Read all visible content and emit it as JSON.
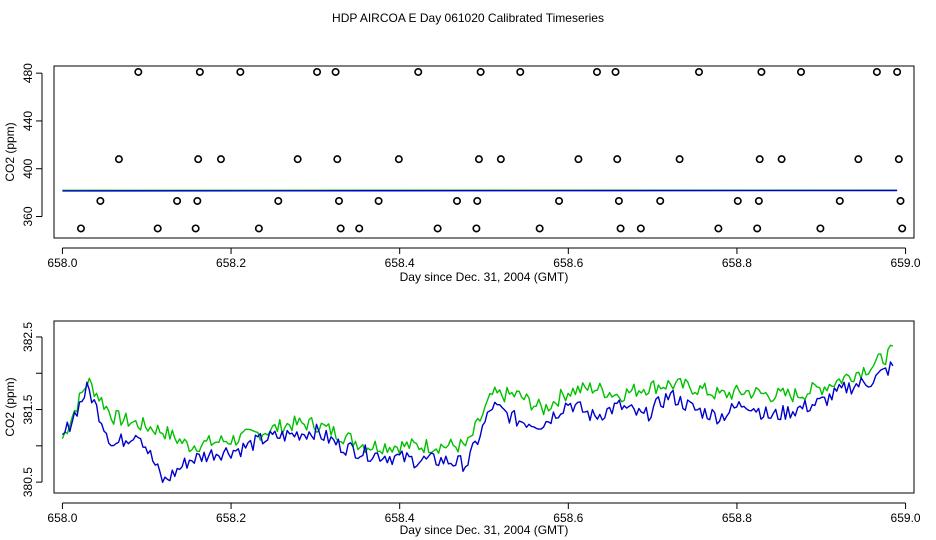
{
  "figure": {
    "title": "HDP AIRCOA E  Day 061020  Calibrated Timeseries"
  },
  "colors": {
    "green": "#00c000",
    "blue": "#0000cc",
    "axis": "#000000"
  },
  "chart_data": [
    {
      "type": "scatter",
      "xlabel": "Day since Dec. 31, 2004 (GMT)",
      "ylabel": "CO2 (ppm)",
      "xlim": [
        657.99,
        659.01
      ],
      "ylim": [
        342,
        486
      ],
      "xticks": [
        658.0,
        658.2,
        658.4,
        658.6,
        658.8,
        659.0
      ],
      "xtick_labels": [
        "658.0",
        "658.2",
        "658.4",
        "658.6",
        "658.8",
        "659.0"
      ],
      "yticks": [
        360,
        400,
        440,
        480
      ],
      "ytick_labels": [
        "360",
        "400",
        "440",
        "480"
      ],
      "markers": [
        {
          "x": 658.022,
          "y": 350
        },
        {
          "x": 658.045,
          "y": 373
        },
        {
          "x": 658.067,
          "y": 408
        },
        {
          "x": 658.09,
          "y": 481
        },
        {
          "x": 658.113,
          "y": 350
        },
        {
          "x": 658.136,
          "y": 373
        },
        {
          "x": 658.158,
          "y": 350
        },
        {
          "x": 658.16,
          "y": 373
        },
        {
          "x": 658.161,
          "y": 408
        },
        {
          "x": 658.163,
          "y": 481
        },
        {
          "x": 658.188,
          "y": 408
        },
        {
          "x": 658.211,
          "y": 481
        },
        {
          "x": 658.233,
          "y": 350
        },
        {
          "x": 658.256,
          "y": 373
        },
        {
          "x": 658.279,
          "y": 408
        },
        {
          "x": 658.302,
          "y": 481
        },
        {
          "x": 658.324,
          "y": 481
        },
        {
          "x": 658.326,
          "y": 408
        },
        {
          "x": 658.328,
          "y": 373
        },
        {
          "x": 658.33,
          "y": 350
        },
        {
          "x": 658.352,
          "y": 350
        },
        {
          "x": 658.375,
          "y": 373
        },
        {
          "x": 658.399,
          "y": 408
        },
        {
          "x": 658.422,
          "y": 481
        },
        {
          "x": 658.445,
          "y": 350
        },
        {
          "x": 658.468,
          "y": 373
        },
        {
          "x": 658.491,
          "y": 350
        },
        {
          "x": 658.492,
          "y": 373
        },
        {
          "x": 658.494,
          "y": 408
        },
        {
          "x": 658.496,
          "y": 481
        },
        {
          "x": 658.52,
          "y": 408
        },
        {
          "x": 658.543,
          "y": 481
        },
        {
          "x": 658.566,
          "y": 350
        },
        {
          "x": 658.589,
          "y": 373
        },
        {
          "x": 658.612,
          "y": 408
        },
        {
          "x": 658.634,
          "y": 481
        },
        {
          "x": 658.656,
          "y": 481
        },
        {
          "x": 658.658,
          "y": 408
        },
        {
          "x": 658.66,
          "y": 373
        },
        {
          "x": 658.662,
          "y": 350
        },
        {
          "x": 658.686,
          "y": 350
        },
        {
          "x": 658.709,
          "y": 373
        },
        {
          "x": 658.732,
          "y": 408
        },
        {
          "x": 658.755,
          "y": 481
        },
        {
          "x": 658.778,
          "y": 350
        },
        {
          "x": 658.801,
          "y": 373
        },
        {
          "x": 658.824,
          "y": 350
        },
        {
          "x": 658.826,
          "y": 373
        },
        {
          "x": 658.827,
          "y": 408
        },
        {
          "x": 658.829,
          "y": 481
        },
        {
          "x": 658.853,
          "y": 408
        },
        {
          "x": 658.876,
          "y": 481
        },
        {
          "x": 658.899,
          "y": 350
        },
        {
          "x": 658.922,
          "y": 373
        },
        {
          "x": 658.944,
          "y": 408
        },
        {
          "x": 658.966,
          "y": 481
        },
        {
          "x": 658.99,
          "y": 481
        },
        {
          "x": 658.992,
          "y": 408
        },
        {
          "x": 658.994,
          "y": 373
        },
        {
          "x": 658.996,
          "y": 350
        }
      ],
      "series": [
        {
          "color": "#00c000",
          "x": [
            658.0,
            658.99
          ],
          "values": [
            381.9,
            382.0
          ]
        },
        {
          "color": "#0000cc",
          "x": [
            658.0,
            658.99
          ],
          "values": [
            381.4,
            381.8
          ]
        }
      ]
    },
    {
      "type": "line",
      "xlabel": "Day since Dec. 31, 2004 (GMT)",
      "ylabel": "CO2 (ppm)",
      "xlim": [
        657.99,
        659.01
      ],
      "ylim": [
        380.35,
        382.72
      ],
      "xticks": [
        658.0,
        658.2,
        658.4,
        658.6,
        658.8,
        659.0
      ],
      "xtick_labels": [
        "658.0",
        "658.2",
        "658.4",
        "658.6",
        "658.8",
        "659.0"
      ],
      "yticks": [
        380.5,
        381.0,
        381.5,
        382.0,
        382.5
      ],
      "ytick_labels": [
        "380.5",
        "",
        "381.5",
        "",
        "382.5"
      ],
      "series": [
        {
          "color": "#00c000",
          "x": [
            658.0,
            658.03,
            658.06,
            658.09,
            658.12,
            658.15,
            658.18,
            658.21,
            658.24,
            658.27,
            658.3,
            658.33,
            658.36,
            658.39,
            658.42,
            658.45,
            658.48,
            658.51,
            658.54,
            658.57,
            658.6,
            658.63,
            658.66,
            658.69,
            658.72,
            658.75,
            658.78,
            658.81,
            658.84,
            658.87,
            658.9,
            658.93,
            658.96,
            658.985
          ],
          "values": [
            381.1,
            381.9,
            381.4,
            381.3,
            381.2,
            381.0,
            381.05,
            381.1,
            381.2,
            381.3,
            381.3,
            381.15,
            381.0,
            381.0,
            381.0,
            381.0,
            381.0,
            381.7,
            381.7,
            381.5,
            381.75,
            381.8,
            381.7,
            381.8,
            381.85,
            381.8,
            381.7,
            381.75,
            381.7,
            381.7,
            381.8,
            381.95,
            382.1,
            382.3
          ]
        },
        {
          "color": "#0000cc",
          "x": [
            658.0,
            658.03,
            658.06,
            658.09,
            658.12,
            658.15,
            658.18,
            658.21,
            658.24,
            658.27,
            658.3,
            658.33,
            658.36,
            658.39,
            658.42,
            658.45,
            658.48,
            658.51,
            658.54,
            658.57,
            658.6,
            658.63,
            658.66,
            658.69,
            658.72,
            658.75,
            658.78,
            658.81,
            658.84,
            658.87,
            658.9,
            658.93,
            658.96,
            658.985
          ],
          "values": [
            381.1,
            381.8,
            381.0,
            381.2,
            380.5,
            380.8,
            380.9,
            380.95,
            381.1,
            381.15,
            381.2,
            381.0,
            380.9,
            380.85,
            380.8,
            380.8,
            380.75,
            381.55,
            381.35,
            381.3,
            381.6,
            381.4,
            381.55,
            381.4,
            381.7,
            381.5,
            381.4,
            381.6,
            381.4,
            381.5,
            381.6,
            381.8,
            381.9,
            382.1
          ]
        }
      ]
    }
  ]
}
